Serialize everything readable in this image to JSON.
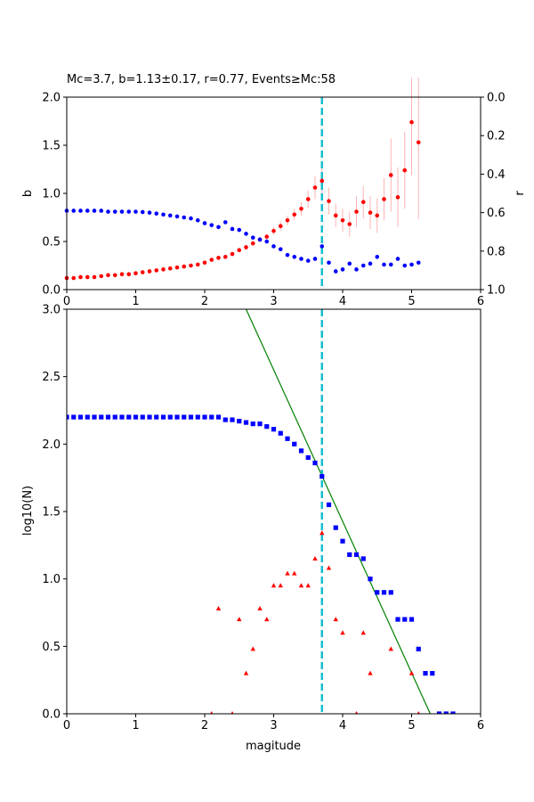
{
  "chart_data": [
    {
      "type": "scatter",
      "title": "Mc=3.7, b=1.13±0.17, r=0.77, Events≥Mc:58",
      "xlabel": "",
      "ylabel": "b",
      "ylabel_right": "r",
      "xlim": [
        0,
        6
      ],
      "ylim": [
        0,
        2.0
      ],
      "ylim_right": [
        1.0,
        0.0
      ],
      "x_ticks": [
        "0",
        "1",
        "2",
        "3",
        "4",
        "5",
        "6"
      ],
      "y_ticks": [
        "0.0",
        "0.5",
        "1.0",
        "1.5",
        "2.0"
      ],
      "y_ticks_right": [
        "0.0",
        "0.2",
        "0.4",
        "0.6",
        "0.8",
        "1.0"
      ],
      "mc_line": 3.7,
      "mc_line_color": "#17becf",
      "series": [
        {
          "color": "#ff0000",
          "axis": "left",
          "x": [
            0.0,
            0.1,
            0.2,
            0.3,
            0.4,
            0.5,
            0.6,
            0.7,
            0.8,
            0.9,
            1.0,
            1.1,
            1.2,
            1.3,
            1.4,
            1.5,
            1.6,
            1.7,
            1.8,
            1.9,
            2.0,
            2.1,
            2.2,
            2.3,
            2.4,
            2.5,
            2.6,
            2.7,
            2.8,
            2.9,
            3.0,
            3.1,
            3.2,
            3.3,
            3.4,
            3.5,
            3.6,
            3.7,
            3.8,
            3.9,
            4.0,
            4.1,
            4.2,
            4.3,
            4.4,
            4.5,
            4.6,
            4.7,
            4.8,
            4.9,
            5.0,
            5.1
          ],
          "y": [
            0.12,
            0.12,
            0.13,
            0.13,
            0.13,
            0.14,
            0.15,
            0.15,
            0.16,
            0.16,
            0.17,
            0.18,
            0.19,
            0.2,
            0.21,
            0.22,
            0.23,
            0.24,
            0.25,
            0.26,
            0.28,
            0.31,
            0.33,
            0.34,
            0.37,
            0.41,
            0.44,
            0.48,
            0.52,
            0.55,
            0.61,
            0.66,
            0.72,
            0.78,
            0.84,
            0.94,
            1.06,
            1.13,
            0.92,
            0.77,
            0.72,
            0.68,
            0.81,
            0.91,
            0.8,
            0.77,
            0.94,
            1.19,
            0.96,
            1.24,
            1.74,
            1.53
          ],
          "err": [
            0.01,
            0.01,
            0.01,
            0.01,
            0.01,
            0.01,
            0.01,
            0.01,
            0.01,
            0.01,
            0.01,
            0.01,
            0.01,
            0.01,
            0.01,
            0.01,
            0.01,
            0.01,
            0.01,
            0.01,
            0.01,
            0.01,
            0.01,
            0.02,
            0.02,
            0.02,
            0.02,
            0.03,
            0.03,
            0.03,
            0.04,
            0.05,
            0.05,
            0.06,
            0.07,
            0.09,
            0.12,
            0.17,
            0.14,
            0.12,
            0.12,
            0.13,
            0.16,
            0.17,
            0.17,
            0.18,
            0.22,
            0.38,
            0.31,
            0.4,
            0.55,
            0.8
          ]
        },
        {
          "color": "#0000ff",
          "axis": "right",
          "x": [
            0.0,
            0.1,
            0.2,
            0.3,
            0.4,
            0.5,
            0.6,
            0.7,
            0.8,
            0.9,
            1.0,
            1.1,
            1.2,
            1.3,
            1.4,
            1.5,
            1.6,
            1.7,
            1.8,
            1.9,
            2.0,
            2.1,
            2.2,
            2.3,
            2.4,
            2.5,
            2.6,
            2.7,
            2.8,
            2.9,
            3.0,
            3.1,
            3.2,
            3.3,
            3.4,
            3.5,
            3.6,
            3.7,
            3.8,
            3.9,
            4.0,
            4.1,
            4.2,
            4.3,
            4.4,
            4.5,
            4.6,
            4.7,
            4.8,
            4.9,
            5.0,
            5.1
          ],
          "y": [
            0.59,
            0.59,
            0.59,
            0.59,
            0.59,
            0.59,
            0.595,
            0.595,
            0.595,
            0.595,
            0.595,
            0.597,
            0.6,
            0.605,
            0.61,
            0.615,
            0.62,
            0.625,
            0.63,
            0.64,
            0.655,
            0.665,
            0.675,
            0.65,
            0.685,
            0.69,
            0.71,
            0.73,
            0.74,
            0.75,
            0.775,
            0.79,
            0.82,
            0.83,
            0.84,
            0.85,
            0.84,
            0.775,
            0.86,
            0.905,
            0.895,
            0.865,
            0.895,
            0.875,
            0.865,
            0.83,
            0.87,
            0.87,
            0.84,
            0.875,
            0.87,
            0.86
          ]
        }
      ]
    },
    {
      "type": "scatter",
      "title": "",
      "xlabel": "magitude",
      "ylabel": "log10(N)",
      "xlim": [
        0,
        6
      ],
      "ylim": [
        0,
        3.0
      ],
      "x_ticks": [
        "0",
        "1",
        "2",
        "3",
        "4",
        "5",
        "6"
      ],
      "y_ticks": [
        "0.0",
        "0.5",
        "1.0",
        "1.5",
        "2.0",
        "2.5",
        "3.0"
      ],
      "mc_line": 3.7,
      "fit_line": {
        "color": "#008000",
        "x": [
          2.6,
          5.27
        ],
        "y": [
          3.0,
          0.0
        ]
      },
      "series": [
        {
          "color": "#0000ff",
          "marker": "square",
          "x": [
            0.0,
            0.1,
            0.2,
            0.3,
            0.4,
            0.5,
            0.6,
            0.7,
            0.8,
            0.9,
            1.0,
            1.1,
            1.2,
            1.3,
            1.4,
            1.5,
            1.6,
            1.7,
            1.8,
            1.9,
            2.0,
            2.1,
            2.2,
            2.3,
            2.4,
            2.5,
            2.6,
            2.7,
            2.8,
            2.9,
            3.0,
            3.1,
            3.2,
            3.3,
            3.4,
            3.5,
            3.6,
            3.7,
            3.8,
            3.9,
            4.0,
            4.1,
            4.2,
            4.3,
            4.4,
            4.5,
            4.6,
            4.7,
            4.8,
            4.9,
            5.0,
            5.1,
            5.2,
            5.3,
            5.4,
            5.5,
            5.6
          ],
          "y": [
            2.2,
            2.2,
            2.2,
            2.2,
            2.2,
            2.2,
            2.2,
            2.2,
            2.2,
            2.2,
            2.2,
            2.2,
            2.2,
            2.2,
            2.2,
            2.2,
            2.2,
            2.2,
            2.2,
            2.2,
            2.2,
            2.2,
            2.2,
            2.18,
            2.18,
            2.17,
            2.16,
            2.15,
            2.15,
            2.13,
            2.11,
            2.08,
            2.04,
            2.0,
            1.95,
            1.9,
            1.86,
            1.76,
            1.55,
            1.38,
            1.28,
            1.18,
            1.18,
            1.15,
            1.0,
            0.9,
            0.9,
            0.9,
            0.7,
            0.7,
            0.7,
            0.48,
            0.3,
            0.3,
            0.0,
            0.0,
            0.0
          ]
        },
        {
          "color": "#ff0000",
          "marker": "triangle",
          "x": [
            2.1,
            2.2,
            2.4,
            2.5,
            2.6,
            2.7,
            2.8,
            2.9,
            3.0,
            3.1,
            3.2,
            3.3,
            3.4,
            3.5,
            3.6,
            3.7,
            3.8,
            3.9,
            4.0,
            4.2,
            4.3,
            4.4,
            4.7,
            5.0,
            5.1
          ],
          "y": [
            0.0,
            0.78,
            0.0,
            0.7,
            0.3,
            0.48,
            0.78,
            0.7,
            0.95,
            0.95,
            1.04,
            1.04,
            0.95,
            0.95,
            1.15,
            1.34,
            1.08,
            0.7,
            0.6,
            0.0,
            0.6,
            0.3,
            0.48,
            0.3,
            0.0
          ]
        }
      ]
    }
  ]
}
